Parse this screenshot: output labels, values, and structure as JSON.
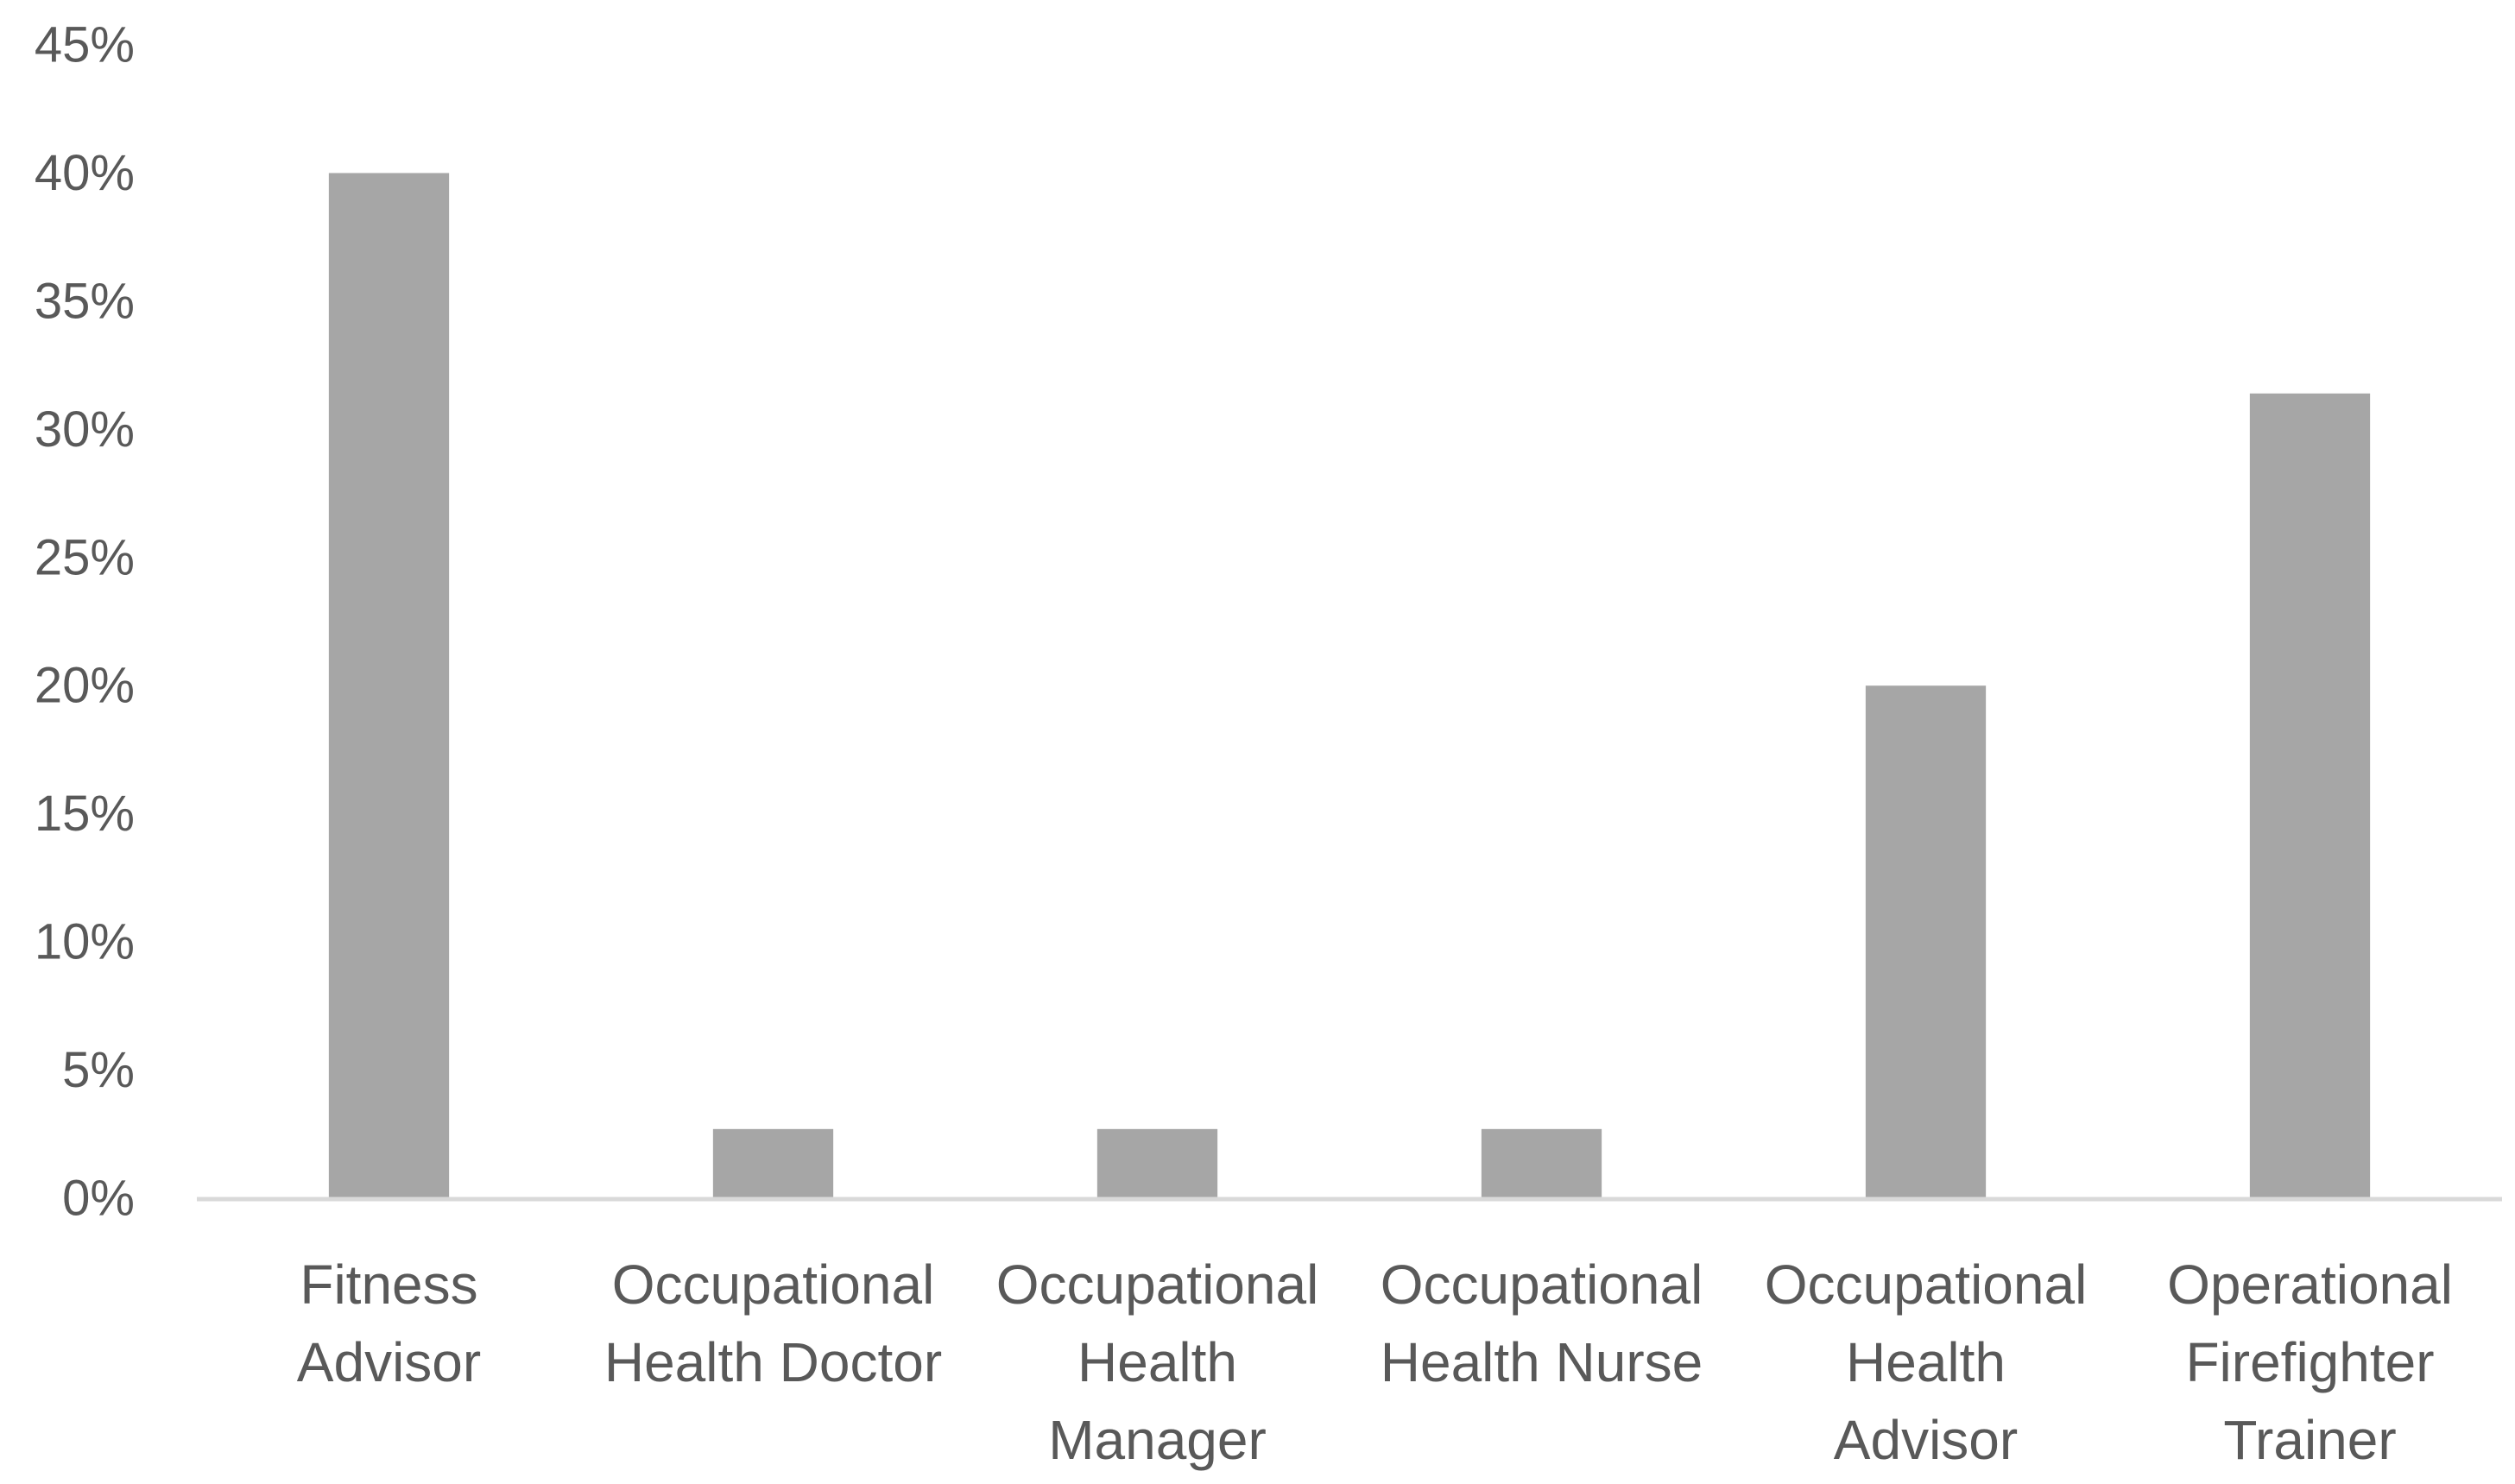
{
  "chart_data": {
    "type": "bar",
    "title": "",
    "xlabel": "",
    "ylabel": "",
    "categories": [
      [
        "Fitness",
        "Advisor"
      ],
      [
        "Occupational",
        "Health Doctor"
      ],
      [
        "Occupational",
        "Health",
        "Manager"
      ],
      [
        "Occupational",
        "Health Nurse"
      ],
      [
        "Occupational",
        "Health",
        "Advisor"
      ],
      [
        "Operational",
        "Firefighter",
        "Trainer"
      ]
    ],
    "values": [
      40,
      2.7,
      2.7,
      2.7,
      20,
      31.4
    ],
    "ylim": [
      0,
      45
    ],
    "yticks": [
      0,
      5,
      10,
      15,
      20,
      25,
      30,
      35,
      40,
      45
    ],
    "ytick_labels": [
      "0%",
      "5%",
      "10%",
      "15%",
      "20%",
      "25%",
      "30%",
      "35%",
      "40%",
      "45%"
    ],
    "grid": false,
    "legend": "none",
    "bar_color": "#a6a6a6",
    "axis_color": "#d9d9d9"
  }
}
